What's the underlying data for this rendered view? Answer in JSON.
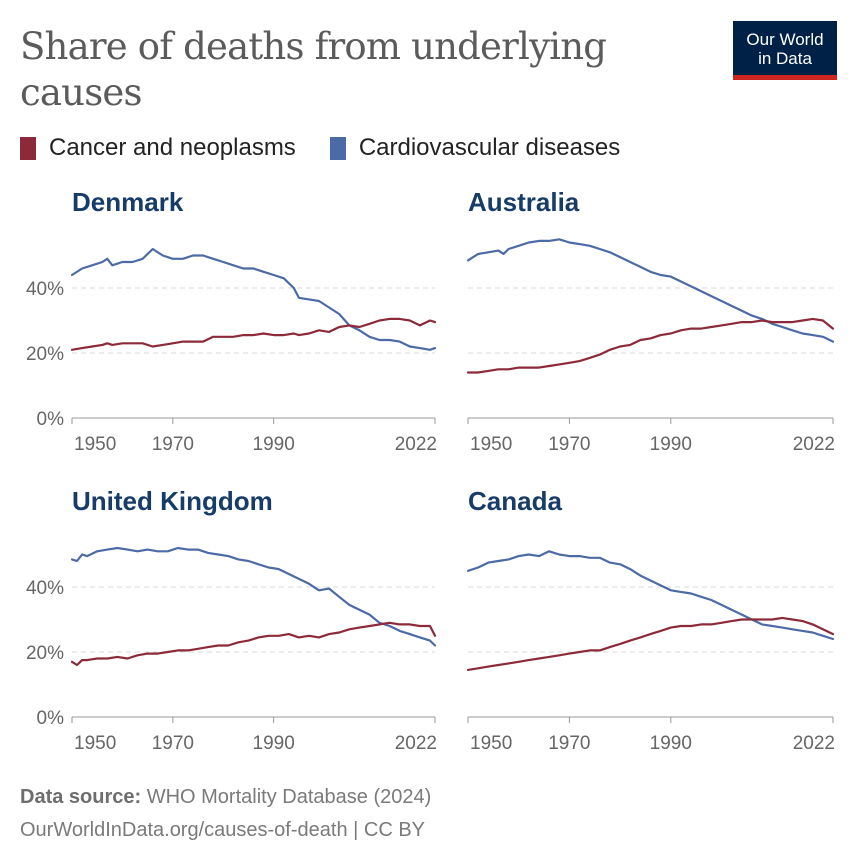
{
  "header": {
    "title": "Share of deaths from underlying causes",
    "logo_line1": "Our World",
    "logo_line2": "in Data"
  },
  "legend": [
    {
      "name": "Cancer and neoplasms",
      "color": "#8c2a3a"
    },
    {
      "name": "Cardiovascular diseases",
      "color": "#4c6aa5"
    }
  ],
  "footer": {
    "source_label": "Data source:",
    "source_text": " WHO Mortality Database (2024)",
    "url_line": "OurWorldInData.org/causes-of-death | CC BY"
  },
  "chart_data": [
    {
      "type": "line",
      "title": "Denmark",
      "x": [
        1950,
        1952,
        1954,
        1956,
        1957,
        1958,
        1960,
        1962,
        1964,
        1966,
        1968,
        1970,
        1972,
        1974,
        1976,
        1978,
        1980,
        1982,
        1984,
        1986,
        1988,
        1990,
        1992,
        1994,
        1995,
        1997,
        1999,
        2001,
        2003,
        2005,
        2007,
        2009,
        2011,
        2013,
        2015,
        2017,
        2019,
        2021,
        2022
      ],
      "series": [
        {
          "name": "Cardiovascular diseases",
          "values": [
            44,
            46,
            47,
            48,
            49,
            47,
            48,
            48,
            49,
            52,
            50,
            49,
            49,
            50,
            50,
            49,
            48,
            47,
            46,
            46,
            45,
            44,
            43,
            40,
            37,
            36.5,
            36,
            34,
            32,
            28.5,
            27,
            25,
            24,
            24,
            23.5,
            22,
            21.5,
            21,
            21.5
          ]
        },
        {
          "name": "Cancer and neoplasms",
          "values": [
            21,
            21.5,
            22,
            22.5,
            23,
            22.5,
            23,
            23,
            23,
            22,
            22.5,
            23,
            23.5,
            23.5,
            23.5,
            25,
            25,
            25,
            25.5,
            25.5,
            26,
            25.5,
            25.5,
            26,
            25.5,
            26,
            27,
            26.5,
            28,
            28.5,
            28,
            29,
            30,
            30.5,
            30.5,
            30,
            28.5,
            30,
            29.5
          ]
        }
      ],
      "yticks": [
        "0%",
        "20%",
        "40%"
      ],
      "xticks": [
        "1950",
        "1970",
        "1990",
        "2022"
      ],
      "ylim": [
        0,
        55
      ],
      "xlim": [
        1950,
        2022
      ]
    },
    {
      "type": "line",
      "title": "Australia",
      "x": [
        1950,
        1952,
        1954,
        1956,
        1957,
        1958,
        1960,
        1962,
        1964,
        1966,
        1968,
        1970,
        1972,
        1974,
        1976,
        1978,
        1980,
        1982,
        1984,
        1986,
        1988,
        1990,
        1992,
        1994,
        1996,
        1998,
        2000,
        2002,
        2004,
        2006,
        2008,
        2010,
        2012,
        2014,
        2016,
        2018,
        2020,
        2022
      ],
      "series": [
        {
          "name": "Cardiovascular diseases",
          "values": [
            48.5,
            50.5,
            51,
            51.5,
            50.5,
            52,
            53,
            54,
            54.5,
            54.5,
            55,
            54,
            53.5,
            53,
            52,
            51,
            49.5,
            48,
            46.5,
            45,
            44,
            43.5,
            42,
            40.5,
            39,
            37.5,
            36,
            34.5,
            33,
            31.5,
            30.5,
            29,
            28,
            27,
            26,
            25.5,
            25,
            23.5
          ]
        },
        {
          "name": "Cancer and neoplasms",
          "values": [
            14,
            14,
            14.5,
            15,
            15,
            15,
            15.5,
            15.5,
            15.5,
            16,
            16.5,
            17,
            17.5,
            18.5,
            19.5,
            21,
            22,
            22.5,
            24,
            24.5,
            25.5,
            26,
            27,
            27.5,
            27.5,
            28,
            28.5,
            29,
            29.5,
            29.5,
            30,
            29.5,
            29.5,
            29.5,
            30,
            30.5,
            30,
            27.5
          ]
        }
      ],
      "yticks": [
        "0%",
        "20%",
        "40%"
      ],
      "xticks": [
        "1950",
        "1970",
        "1990",
        "2022"
      ],
      "ylim": [
        0,
        55
      ],
      "xlim": [
        1950,
        2022
      ]
    },
    {
      "type": "line",
      "title": "United Kingdom",
      "x": [
        1950,
        1951,
        1952,
        1953,
        1955,
        1957,
        1959,
        1961,
        1963,
        1965,
        1967,
        1969,
        1971,
        1973,
        1975,
        1977,
        1979,
        1981,
        1983,
        1985,
        1987,
        1989,
        1991,
        1993,
        1995,
        1997,
        1999,
        2001,
        2003,
        2005,
        2007,
        2009,
        2011,
        2013,
        2015,
        2017,
        2019,
        2021,
        2022
      ],
      "series": [
        {
          "name": "Cardiovascular diseases",
          "values": [
            48.5,
            48,
            50,
            49.5,
            51,
            51.5,
            52,
            51.5,
            51,
            51.5,
            51,
            51,
            52,
            51.5,
            51.5,
            50.5,
            50,
            49.5,
            48.5,
            48,
            47,
            46,
            45.5,
            44,
            42.5,
            41,
            39,
            39.5,
            37,
            34.5,
            33,
            31.5,
            29,
            28,
            26.5,
            25.5,
            24.5,
            23.5,
            22
          ]
        },
        {
          "name": "Cancer and neoplasms",
          "values": [
            17,
            16,
            17.5,
            17.5,
            18,
            18,
            18.5,
            18,
            19,
            19.5,
            19.5,
            20,
            20.5,
            20.5,
            21,
            21.5,
            22,
            22,
            23,
            23.5,
            24.5,
            25,
            25,
            25.5,
            24.5,
            25,
            24.5,
            25.5,
            26,
            27,
            27.5,
            28,
            28.5,
            29,
            28.5,
            28.5,
            28,
            28,
            25
          ]
        }
      ],
      "yticks": [
        "0%",
        "20%",
        "40%"
      ],
      "xticks": [
        "1950",
        "1970",
        "1990",
        "2022"
      ],
      "ylim": [
        0,
        55
      ],
      "xlim": [
        1950,
        2022
      ]
    },
    {
      "type": "line",
      "title": "Canada",
      "x": [
        1950,
        1952,
        1954,
        1956,
        1958,
        1960,
        1962,
        1964,
        1966,
        1968,
        1970,
        1972,
        1974,
        1976,
        1978,
        1980,
        1982,
        1984,
        1986,
        1988,
        1990,
        1992,
        1994,
        1996,
        1998,
        2000,
        2002,
        2004,
        2006,
        2008,
        2010,
        2012,
        2014,
        2016,
        2018,
        2020,
        2022
      ],
      "series": [
        {
          "name": "Cardiovascular diseases",
          "values": [
            45,
            46,
            47.5,
            48,
            48.5,
            49.5,
            50,
            49.5,
            51,
            50,
            49.5,
            49.5,
            49,
            49,
            47.5,
            47,
            45.5,
            43.5,
            42,
            40.5,
            39,
            38.5,
            38,
            37,
            36,
            34.5,
            33,
            31.5,
            30,
            28.5,
            28,
            27.5,
            27,
            26.5,
            26,
            25,
            24
          ]
        },
        {
          "name": "Cancer and neoplasms",
          "values": [
            14.5,
            15,
            15.5,
            16,
            16.5,
            17,
            17.5,
            18,
            18.5,
            19,
            19.5,
            20,
            20.5,
            20.5,
            21.5,
            22.5,
            23.5,
            24.5,
            25.5,
            26.5,
            27.5,
            28,
            28,
            28.5,
            28.5,
            29,
            29.5,
            30,
            30,
            30,
            30,
            30.5,
            30,
            29.5,
            28.5,
            27,
            25.5
          ]
        }
      ],
      "yticks": [
        "0%",
        "20%",
        "40%"
      ],
      "xticks": [
        "1950",
        "1970",
        "1990",
        "2022"
      ],
      "ylim": [
        0,
        55
      ],
      "xlim": [
        1950,
        2022
      ]
    }
  ]
}
